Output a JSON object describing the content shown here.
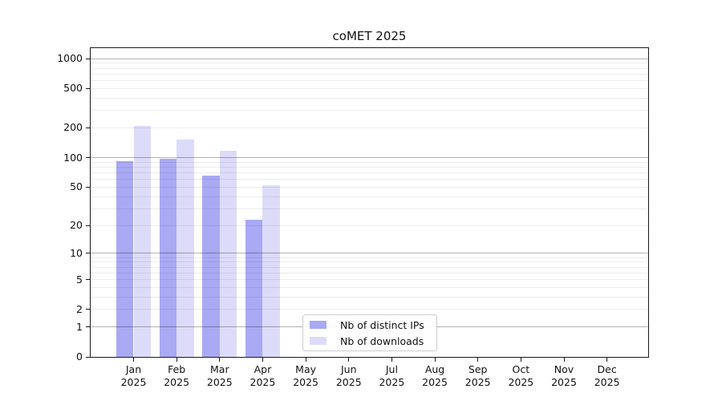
{
  "chart_data": {
    "type": "bar",
    "title": "coMET 2025",
    "x_months": [
      "Jan",
      "Feb",
      "Mar",
      "Apr",
      "May",
      "Jun",
      "Jul",
      "Aug",
      "Sep",
      "Oct",
      "Nov",
      "Dec"
    ],
    "x_year": "2025",
    "series": [
      {
        "name": "Nb of distinct IPs",
        "color": "#a9a9f4",
        "values": [
          92,
          98,
          66,
          23,
          0,
          0,
          0,
          0,
          0,
          0,
          0,
          0
        ]
      },
      {
        "name": "Nb of downloads",
        "color": "#dcdcfa",
        "values": [
          210,
          152,
          117,
          52,
          0,
          0,
          0,
          0,
          0,
          0,
          0,
          0
        ]
      }
    ],
    "y_axis": {
      "scale": "log1p",
      "ticks": [
        0,
        1,
        2,
        5,
        10,
        20,
        50,
        100,
        200,
        500,
        1000
      ]
    },
    "grid": {
      "major_gridline_values": [
        1,
        10,
        100,
        1000
      ],
      "minor_gridlines": "2-9 per decade"
    },
    "legend": {
      "position": "bottom-center-inside-plot"
    }
  }
}
